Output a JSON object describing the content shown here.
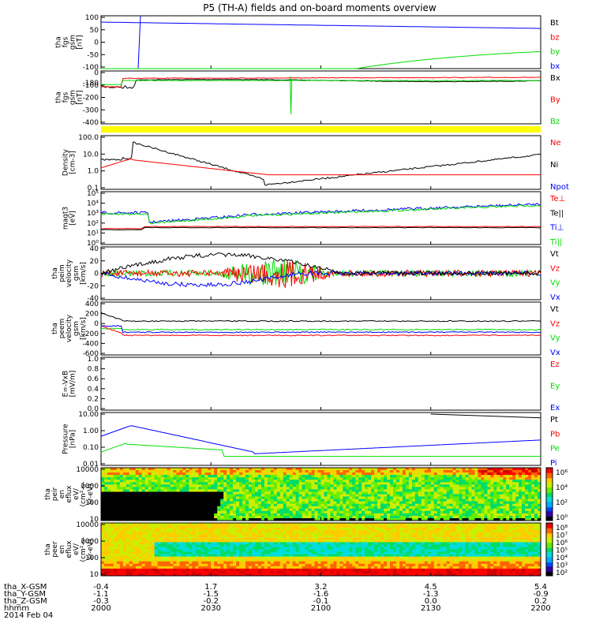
{
  "title": "P5 (TH-A) fields and on-board moments overview",
  "colors": {
    "black": "#000000",
    "red": "#ff0000",
    "green": "#00dd00",
    "blue": "#0000ff",
    "yellow": "#ffff00"
  },
  "chart_data": {
    "type": "line",
    "xaxis": {
      "rows": [
        {
          "label": "tha_X-GSM",
          "values": [
            "-0.4",
            "1.7",
            "3.2",
            "4.5",
            "5.4"
          ]
        },
        {
          "label": "tha_Y-GSM",
          "values": [
            "-1.1",
            "-1.5",
            "-1.6",
            "-1.3",
            "-0.9"
          ]
        },
        {
          "label": "tha_Z-GSM",
          "values": [
            "-0.3",
            "-0.2",
            "-0.1",
            "0.0",
            "0.2"
          ]
        },
        {
          "label": "hhmm",
          "values": [
            "2000",
            "2030",
            "2100",
            "2130",
            "2200"
          ]
        }
      ],
      "date": "2014 Feb 04"
    },
    "panels": [
      {
        "id": "fgs-zoom",
        "ylabel": [
          "tha",
          "fgs",
          "gsm",
          "[nT]"
        ],
        "ylim": [
          -100,
          100
        ],
        "ticks": [
          "100",
          "50",
          "0",
          "-50",
          "-100"
        ],
        "legend": [
          {
            "text": "Bt",
            "color": "black"
          },
          {
            "text": "bz",
            "color": "red"
          },
          {
            "text": "by",
            "color": "green"
          },
          {
            "text": "bx",
            "color": "blue"
          }
        ]
      },
      {
        "id": "fgs-full",
        "ylabel": [
          "tha",
          "fgs",
          "gsm",
          "[nT]"
        ],
        "ylim": [
          -450,
          50
        ],
        "ticks": [
          "0",
          "-100",
          "-200",
          "-300",
          "-400"
        ],
        "extra_tick": "-180",
        "legend": [
          {
            "text": "Bx",
            "color": "black"
          },
          {
            "text": "By",
            "color": "red"
          },
          {
            "text": "Bz",
            "color": "green"
          }
        ]
      },
      {
        "id": "mode-bar",
        "bar_color": "yellow"
      },
      {
        "id": "density",
        "ylabel": [
          "Density",
          "[cm-3]"
        ],
        "scale": "log",
        "ticks": [
          "100.0",
          "10.0",
          "1.0",
          "0.1"
        ],
        "legend": [
          {
            "text": "Ne",
            "color": "red"
          },
          {
            "text": "Ni",
            "color": "black"
          },
          {
            "text": "Npot",
            "color": "blue"
          }
        ]
      },
      {
        "id": "temperature",
        "ylabel": [
          "magt3",
          "[eV]"
        ],
        "scale": "log",
        "ticks": [
          "10⁵",
          "10⁴",
          "10³",
          "10²",
          "10¹",
          "10⁰"
        ],
        "legend": [
          {
            "text": "Te⊥",
            "color": "red"
          },
          {
            "text": "Te||",
            "color": "black"
          },
          {
            "text": "Ti⊥",
            "color": "blue"
          },
          {
            "text": "Ti||",
            "color": "green"
          }
        ]
      },
      {
        "id": "peim-velocity",
        "ylabel": [
          "tha",
          "peim",
          "velocity",
          "gsm",
          "[km/s]"
        ],
        "ylim": [
          -40,
          40
        ],
        "ticks": [
          "40",
          "20",
          "0",
          "-20",
          "-40"
        ],
        "legend": [
          {
            "text": "Vt",
            "color": "black"
          },
          {
            "text": "Vz",
            "color": "red"
          },
          {
            "text": "Vy",
            "color": "green"
          },
          {
            "text": "Vx",
            "color": "blue"
          }
        ]
      },
      {
        "id": "peem-velocity",
        "ylabel": [
          "tha",
          "peem",
          "velocity",
          "gsm",
          "[km/s]"
        ],
        "ylim": [
          -600,
          400
        ],
        "ticks": [
          "400",
          "200",
          "0",
          "-200",
          "-400",
          "-600"
        ],
        "legend": [
          {
            "text": "Vt",
            "color": "black"
          },
          {
            "text": "Vz",
            "color": "red"
          },
          {
            "text": "Vy",
            "color": "green"
          },
          {
            "text": "Vx",
            "color": "blue"
          }
        ]
      },
      {
        "id": "efield",
        "ylabel": [
          "E=-VxB",
          "[mV/m]"
        ],
        "ylim": [
          0,
          1
        ],
        "ticks": [
          "1.0",
          "0.8",
          "0.6",
          "0.4",
          "0.2",
          "0.0"
        ],
        "legend": [
          {
            "text": "Ez",
            "color": "red"
          },
          {
            "text": "Ey",
            "color": "green"
          },
          {
            "text": "Ex",
            "color": "blue"
          }
        ]
      },
      {
        "id": "pressure",
        "ylabel": [
          "Pressure",
          "[nPa]"
        ],
        "scale": "log",
        "ticks": [
          "10.00",
          "1.00",
          "0.10",
          "0.01"
        ],
        "legend": [
          {
            "text": "Pt",
            "color": "black"
          },
          {
            "text": "Pb",
            "color": "red"
          },
          {
            "text": "Pe",
            "color": "green"
          },
          {
            "text": "Pi",
            "color": "blue"
          }
        ]
      },
      {
        "id": "peir-spectrogram",
        "ylabel": [
          "tha",
          "peir",
          "en",
          "eflux",
          "eV/",
          "(cm²-s-",
          "sr-eV)"
        ],
        "ticks": [
          "10000",
          "1000",
          "100",
          "10"
        ],
        "colorbar_ticks": [
          "10⁶",
          "10⁴",
          "10²",
          "10⁰"
        ]
      },
      {
        "id": "peer-spectrogram",
        "ylabel": [
          "tha",
          "peer",
          "en",
          "eflux",
          "eV/",
          "(cm²-s-",
          "sr-eV)"
        ],
        "ticks": [
          "10000",
          "1000",
          "100",
          "10"
        ],
        "colorbar_ticks": [
          "10⁸",
          "10⁷",
          "10⁶",
          "10⁵",
          "10⁴",
          "10³",
          "10²"
        ]
      }
    ]
  }
}
